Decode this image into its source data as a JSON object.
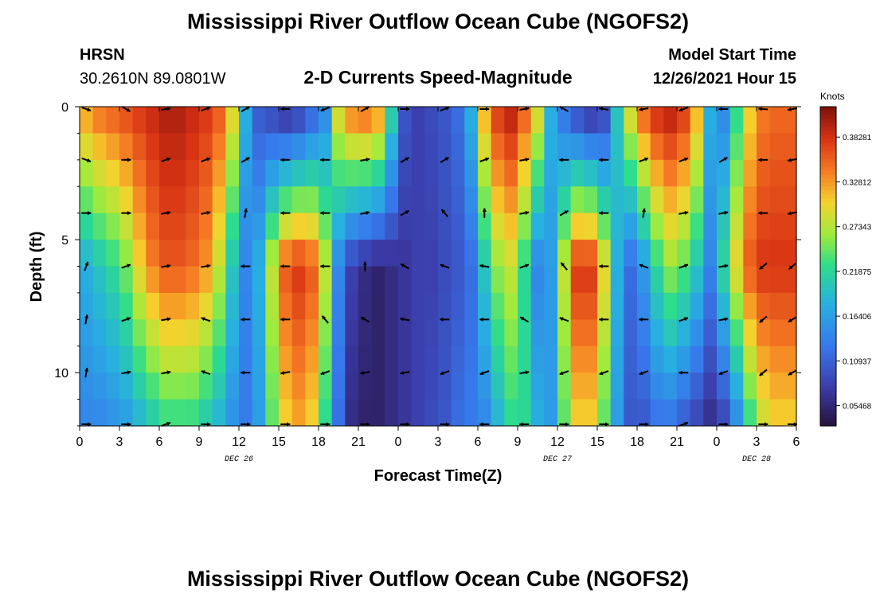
{
  "page": {
    "title": "Mississippi River Outflow Ocean Cube (NGOFS2)",
    "footer_title": "Mississippi River Outflow Ocean Cube (NGOFS2)"
  },
  "station": {
    "code": "HRSN",
    "coords": "30.2610N  89.0801W"
  },
  "model": {
    "label": "Model Start Time",
    "start": "12/26/2021 Hour 15"
  },
  "chart_data": {
    "type": "heatmap",
    "title": "2-D Currents Speed-Magnitude",
    "xlabel": "Forecast Time(Z)",
    "ylabel": "Depth (ft)",
    "colorbar_label": "Knots",
    "colorbar_ticks": [
      "0.38281",
      "0.32812",
      "0.27343",
      "0.21875",
      "0.16406",
      "0.10937",
      "0.05468"
    ],
    "colorbar_tick_values": [
      0.38281,
      0.32812,
      0.27343,
      0.21875,
      0.16406,
      0.10937,
      0.05468
    ],
    "value_range": [
      0.03,
      0.42
    ],
    "x_range_hours": [
      0,
      54
    ],
    "x_ticks": [
      "0",
      "3",
      "6",
      "9",
      "12",
      "15",
      "18",
      "21",
      "0",
      "3",
      "6",
      "9",
      "12",
      "15",
      "18",
      "21",
      "0",
      "3",
      "6"
    ],
    "date_labels": [
      {
        "text": "DEC 26",
        "hour": 12
      },
      {
        "text": "DEC 27",
        "hour": 36
      },
      {
        "text": "DEC 28",
        "hour": 51
      }
    ],
    "y_ticks": [
      "0",
      "5",
      "10"
    ],
    "y_tick_values": [
      0,
      5,
      10
    ],
    "y_range_ft": [
      0,
      12
    ],
    "speed_profile_hours": [
      0,
      1,
      2,
      3,
      4,
      5,
      6,
      7,
      8,
      9,
      10,
      11,
      12,
      13,
      14,
      15,
      16,
      17,
      18,
      19,
      20,
      21,
      22,
      23,
      24,
      25,
      26,
      27,
      28,
      29,
      30,
      31,
      32,
      33,
      34,
      35,
      36,
      37,
      38,
      39,
      40,
      41,
      42,
      43,
      44,
      45,
      46,
      47,
      48,
      49,
      50,
      51,
      52,
      53,
      54
    ],
    "speed_profile_surface": [
      0.33,
      0.35,
      0.36,
      0.37,
      0.38,
      0.39,
      0.4,
      0.4,
      0.39,
      0.38,
      0.36,
      0.3,
      0.18,
      0.1,
      0.08,
      0.06,
      0.07,
      0.1,
      0.14,
      0.3,
      0.35,
      0.36,
      0.34,
      0.22,
      0.1,
      0.08,
      0.09,
      0.1,
      0.12,
      0.18,
      0.32,
      0.38,
      0.4,
      0.36,
      0.3,
      0.18,
      0.12,
      0.08,
      0.06,
      0.08,
      0.2,
      0.3,
      0.36,
      0.39,
      0.4,
      0.38,
      0.32,
      0.18,
      0.14,
      0.22,
      0.3,
      0.34,
      0.35,
      0.35,
      0.35
    ],
    "speed_profile_mid": [
      0.18,
      0.2,
      0.22,
      0.25,
      0.3,
      0.34,
      0.36,
      0.36,
      0.35,
      0.33,
      0.28,
      0.2,
      0.14,
      0.18,
      0.28,
      0.36,
      0.38,
      0.36,
      0.28,
      0.14,
      0.08,
      0.06,
      0.05,
      0.06,
      0.07,
      0.08,
      0.08,
      0.09,
      0.1,
      0.12,
      0.2,
      0.26,
      0.28,
      0.22,
      0.14,
      0.16,
      0.28,
      0.38,
      0.38,
      0.3,
      0.18,
      0.12,
      0.16,
      0.22,
      0.26,
      0.24,
      0.2,
      0.14,
      0.22,
      0.3,
      0.36,
      0.38,
      0.38,
      0.38,
      0.38
    ],
    "speed_profile_bottom": [
      0.14,
      0.14,
      0.15,
      0.16,
      0.18,
      0.2,
      0.22,
      0.22,
      0.22,
      0.2,
      0.18,
      0.15,
      0.13,
      0.16,
      0.24,
      0.3,
      0.32,
      0.3,
      0.22,
      0.12,
      0.06,
      0.05,
      0.05,
      0.06,
      0.07,
      0.08,
      0.09,
      0.1,
      0.12,
      0.13,
      0.14,
      0.18,
      0.22,
      0.22,
      0.18,
      0.16,
      0.24,
      0.3,
      0.3,
      0.24,
      0.16,
      0.1,
      0.1,
      0.12,
      0.12,
      0.1,
      0.08,
      0.06,
      0.08,
      0.14,
      0.22,
      0.28,
      0.3,
      0.3,
      0.3
    ],
    "arrow_hours": [
      0.5,
      3.5,
      6.5,
      9.5,
      12.5,
      15.5,
      18.5,
      21.5,
      24.5,
      27.5,
      30.5,
      33.5,
      36.5,
      39.5,
      42.5,
      45.5,
      48.5,
      51.5,
      53.7
    ],
    "arrow_depths_ft": [
      0,
      2,
      4,
      6,
      8,
      10,
      12
    ],
    "arrow_directions_deg": [
      [
        340,
        330,
        10,
        20,
        30,
        180,
        200,
        30,
        0,
        20,
        0,
        10,
        150,
        170,
        190,
        200,
        180,
        175,
        190
      ],
      [
        340,
        0,
        20,
        20,
        30,
        180,
        180,
        10,
        30,
        30,
        20,
        10,
        180,
        180,
        20,
        20,
        30,
        180,
        190
      ],
      [
        0,
        0,
        10,
        10,
        80,
        180,
        180,
        10,
        30,
        130,
        90,
        10,
        30,
        180,
        80,
        10,
        10,
        180,
        190
      ],
      [
        70,
        20,
        10,
        10,
        180,
        180,
        180,
        90,
        150,
        160,
        170,
        20,
        130,
        180,
        160,
        20,
        10,
        220,
        220
      ],
      [
        80,
        20,
        10,
        160,
        180,
        180,
        130,
        150,
        170,
        180,
        180,
        150,
        160,
        180,
        180,
        20,
        10,
        220,
        210
      ],
      [
        80,
        10,
        10,
        160,
        180,
        190,
        200,
        190,
        190,
        200,
        200,
        10,
        200,
        200,
        200,
        180,
        200,
        220,
        210
      ],
      [
        0,
        0,
        20,
        0,
        0,
        0,
        0,
        0,
        0,
        0,
        180,
        180,
        0,
        0,
        0,
        20,
        0,
        0,
        0
      ]
    ]
  }
}
